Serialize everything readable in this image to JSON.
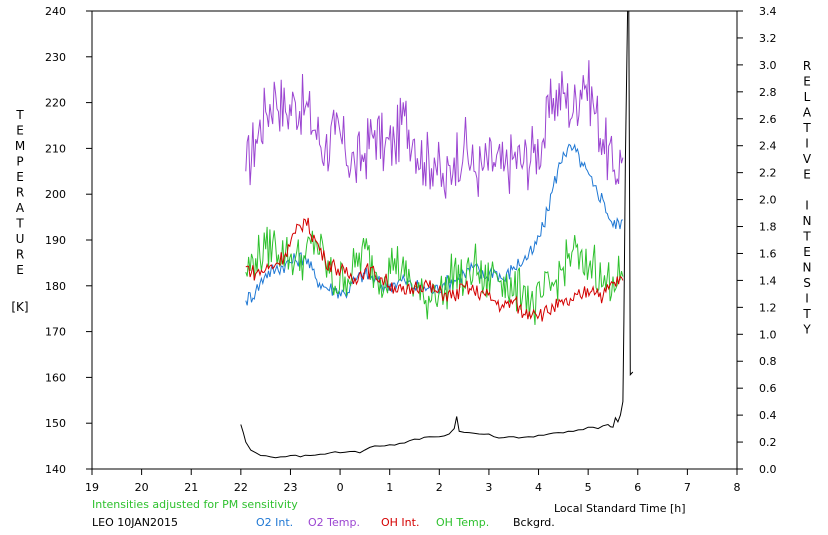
{
  "chart_data": {
    "type": "line",
    "left_axis_label_letters": [
      "T",
      "E",
      "M",
      "P",
      "E",
      "R",
      "A",
      "T",
      "U",
      "R",
      "E"
    ],
    "left_axis_unit": "[K]",
    "right_axis_label_letters": [
      "R",
      "E",
      "L",
      "A",
      "T",
      "I",
      "V",
      "E",
      " ",
      "I",
      "N",
      "T",
      "E",
      "N",
      "S",
      "I",
      "T",
      "Y"
    ],
    "xlabel": "Local Standard Time [h]",
    "note": "Intensities adjusted for PM sensitivity",
    "station_date": "LEO 10JAN2015",
    "x_range": [
      19,
      32
    ],
    "x_tick_labels": [
      "19",
      "20",
      "21",
      "22",
      "23",
      "0",
      "1",
      "2",
      "3",
      "4",
      "5",
      "6",
      "7",
      "8"
    ],
    "y_left_range": [
      140,
      240
    ],
    "y_left_ticks": [
      "140",
      "150",
      "160",
      "170",
      "180",
      "190",
      "200",
      "210",
      "220",
      "230",
      "240"
    ],
    "y_right_range": [
      0.0,
      3.4
    ],
    "y_right_ticks": [
      "0.0",
      "0.2",
      "0.4",
      "0.6",
      "0.8",
      "1.0",
      "1.2",
      "1.4",
      "1.6",
      "1.8",
      "2.0",
      "2.2",
      "2.4",
      "2.6",
      "2.8",
      "3.0",
      "3.2",
      "3.4"
    ],
    "grid": false,
    "legend": [
      {
        "key": "o2_int",
        "label": "O2 Int.",
        "color": "#1f78d4"
      },
      {
        "key": "o2_temp",
        "label": "O2 Temp.",
        "color": "#9b45d1"
      },
      {
        "key": "oh_int",
        "label": "OH Int.",
        "color": "#d40000"
      },
      {
        "key": "oh_temp",
        "label": "OH Temp.",
        "color": "#2ec12e"
      },
      {
        "key": "bckgrd",
        "label": "Bckgrd.",
        "color": "#000000"
      }
    ],
    "series": [
      {
        "key": "o2_temp",
        "axis": "left",
        "color": "#9b45d1",
        "x": [
          22.1,
          22.3,
          22.5,
          22.7,
          22.9,
          23.1,
          23.3,
          23.5,
          23.7,
          23.9,
          24.1,
          24.3,
          24.5,
          24.7,
          24.9,
          25.1,
          25.3,
          25.5,
          25.7,
          25.9,
          26.1,
          26.3,
          26.5,
          26.7,
          26.9,
          27.1,
          27.3,
          27.5,
          27.7,
          27.9,
          28.1,
          28.3,
          28.5,
          28.7,
          28.9,
          29.1,
          29.3,
          29.5,
          29.7
        ],
        "y": [
          205,
          212,
          218,
          222,
          218,
          220,
          219,
          214,
          210,
          213,
          210,
          206,
          209,
          214,
          210,
          211,
          217,
          212,
          207,
          208,
          201,
          208,
          211,
          205,
          206,
          207,
          205,
          208,
          207,
          209,
          212,
          221,
          222,
          218,
          226,
          220,
          212,
          205,
          208
        ]
      },
      {
        "key": "o2_int",
        "axis": "right",
        "color": "#1f78d4",
        "x": [
          22.1,
          22.3,
          22.5,
          22.7,
          22.9,
          23.1,
          23.3,
          23.5,
          23.7,
          23.9,
          24.1,
          24.3,
          24.5,
          24.7,
          24.9,
          25.1,
          25.3,
          25.5,
          25.7,
          25.9,
          26.1,
          26.3,
          26.5,
          26.7,
          26.9,
          27.1,
          27.3,
          27.5,
          27.7,
          27.9,
          28.1,
          28.3,
          28.5,
          28.7,
          28.9,
          29.1,
          29.3,
          29.5,
          29.7
        ],
        "y": [
          1.25,
          1.32,
          1.45,
          1.48,
          1.52,
          1.55,
          1.58,
          1.42,
          1.35,
          1.33,
          1.3,
          1.4,
          1.45,
          1.4,
          1.35,
          1.38,
          1.4,
          1.35,
          1.35,
          1.32,
          1.38,
          1.4,
          1.45,
          1.5,
          1.42,
          1.48,
          1.4,
          1.5,
          1.55,
          1.62,
          1.8,
          2.1,
          2.35,
          2.38,
          2.25,
          2.1,
          2.0,
          1.8,
          1.85
        ]
      },
      {
        "key": "oh_temp",
        "axis": "left",
        "color": "#2ec12e",
        "x": [
          22.1,
          22.3,
          22.5,
          22.7,
          22.9,
          23.1,
          23.3,
          23.5,
          23.7,
          23.9,
          24.1,
          24.3,
          24.5,
          24.7,
          24.9,
          25.1,
          25.3,
          25.5,
          25.7,
          25.9,
          26.1,
          26.3,
          26.5,
          26.7,
          26.9,
          27.1,
          27.3,
          27.5,
          27.7,
          27.9,
          28.1,
          28.3,
          28.5,
          28.7,
          28.9,
          29.1,
          29.3,
          29.5,
          29.7
        ],
        "y": [
          183,
          186,
          188,
          189,
          187,
          186,
          186,
          190,
          185,
          180,
          182,
          184,
          188,
          183,
          182,
          186,
          182,
          180,
          176,
          180,
          178,
          184,
          180,
          185,
          180,
          183,
          182,
          178,
          180,
          175,
          178,
          180,
          184,
          188,
          183,
          186,
          180,
          182,
          182
        ]
      },
      {
        "key": "oh_int",
        "axis": "right",
        "color": "#d40000",
        "x": [
          22.1,
          22.3,
          22.5,
          22.7,
          22.9,
          23.1,
          23.3,
          23.5,
          23.7,
          23.9,
          24.1,
          24.3,
          24.5,
          24.7,
          24.9,
          25.1,
          25.3,
          25.5,
          25.7,
          25.9,
          26.1,
          26.3,
          26.5,
          26.7,
          26.9,
          27.1,
          27.3,
          27.5,
          27.7,
          27.9,
          28.1,
          28.3,
          28.5,
          28.7,
          28.9,
          29.1,
          29.3,
          29.5,
          29.7
        ],
        "y": [
          1.5,
          1.45,
          1.48,
          1.52,
          1.6,
          1.75,
          1.85,
          1.7,
          1.55,
          1.5,
          1.45,
          1.42,
          1.48,
          1.45,
          1.4,
          1.35,
          1.3,
          1.35,
          1.38,
          1.32,
          1.3,
          1.28,
          1.35,
          1.32,
          1.3,
          1.25,
          1.2,
          1.25,
          1.15,
          1.18,
          1.15,
          1.2,
          1.22,
          1.25,
          1.3,
          1.35,
          1.28,
          1.38,
          1.4
        ]
      },
      {
        "key": "bckgrd",
        "axis": "right",
        "color": "#000000",
        "x": [
          22.0,
          22.1,
          22.2,
          22.4,
          22.6,
          22.8,
          23.0,
          23.2,
          23.4,
          23.6,
          23.8,
          24.0,
          24.2,
          24.4,
          24.6,
          24.8,
          25.0,
          25.2,
          25.4,
          25.6,
          25.8,
          26.0,
          26.2,
          26.3,
          26.35,
          26.4,
          26.6,
          26.8,
          27.0,
          27.2,
          27.4,
          27.6,
          27.8,
          28.0,
          28.2,
          28.4,
          28.6,
          28.8,
          29.0,
          29.2,
          29.4,
          29.5,
          29.55,
          29.6,
          29.65,
          29.7,
          29.72,
          29.75,
          29.8,
          29.82,
          29.85,
          29.9
        ],
        "y": [
          0.33,
          0.2,
          0.14,
          0.1,
          0.09,
          0.09,
          0.1,
          0.09,
          0.1,
          0.11,
          0.12,
          0.12,
          0.13,
          0.12,
          0.16,
          0.17,
          0.18,
          0.19,
          0.21,
          0.22,
          0.24,
          0.24,
          0.26,
          0.3,
          0.39,
          0.28,
          0.27,
          0.26,
          0.26,
          0.23,
          0.24,
          0.23,
          0.24,
          0.25,
          0.26,
          0.27,
          0.28,
          0.29,
          0.31,
          0.3,
          0.33,
          0.31,
          0.38,
          0.35,
          0.4,
          0.5,
          1.1,
          2.3,
          3.5,
          3.4,
          0.7,
          0.72
        ]
      }
    ]
  }
}
